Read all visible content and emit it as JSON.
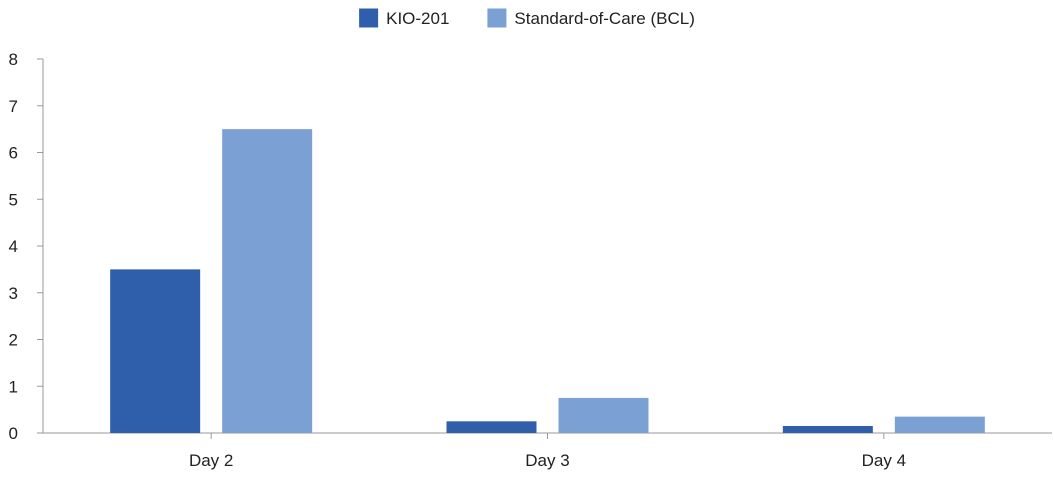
{
  "chart_data": {
    "type": "bar",
    "categories": [
      "Day 2",
      "Day 3",
      "Day 4"
    ],
    "series": [
      {
        "name": "KIO-201",
        "values": [
          3.5,
          0.25,
          0.15
        ],
        "color": "#2f5faa"
      },
      {
        "name": "Standard-of-Care (BCL)",
        "values": [
          6.5,
          0.75,
          0.35
        ],
        "color": "#7ba0d4"
      }
    ],
    "ylim": [
      0,
      8
    ],
    "yticks": [
      "0",
      "1",
      "2",
      "3",
      "4",
      "5",
      "6",
      "7",
      "8"
    ],
    "grid": false,
    "legend_position": "top-center",
    "title": "",
    "xlabel": "",
    "ylabel": ""
  }
}
